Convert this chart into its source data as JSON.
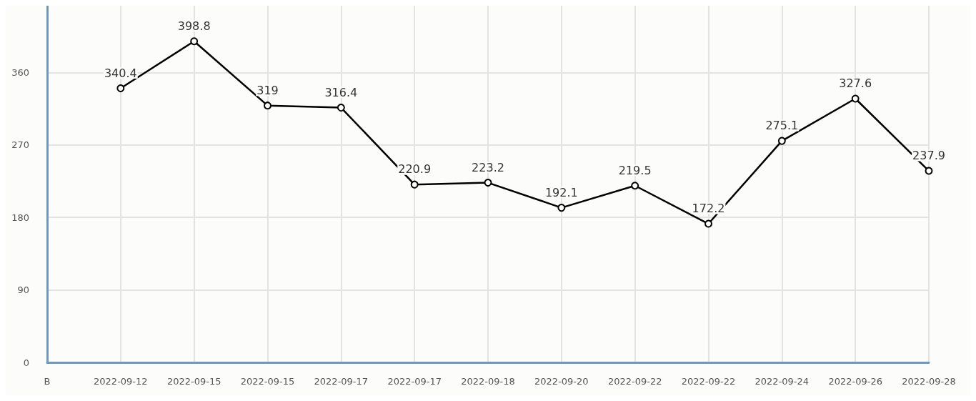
{
  "chart_data": {
    "type": "line",
    "categories": [
      "B",
      "2022-09-12",
      "2022-09-15",
      "2022-09-15",
      "2022-09-17",
      "2022-09-17",
      "2022-09-18",
      "2022-09-20",
      "2022-09-22",
      "2022-09-22",
      "2022-09-24",
      "2022-09-26",
      "2022-09-28"
    ],
    "series": [
      {
        "color": "#000000",
        "values": [
          null,
          340.4,
          398.8,
          319,
          316.4,
          220.9,
          223.2,
          192.1,
          219.5,
          172.2,
          275.1,
          327.6,
          237.9
        ]
      }
    ],
    "ylim": [
      0,
      443
    ],
    "yticks": [
      0,
      90,
      180,
      270,
      360
    ],
    "grid": true,
    "data_labels": true,
    "marker": "circle",
    "line_style": "solid"
  }
}
